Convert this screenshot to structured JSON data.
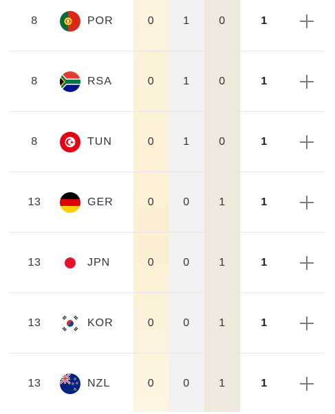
{
  "rows": [
    {
      "rank": "8",
      "code": "POR",
      "flag_icon": "portugal-flag-icon",
      "gold": "0",
      "silver": "1",
      "bronze": "0",
      "total": "1"
    },
    {
      "rank": "8",
      "code": "RSA",
      "flag_icon": "south-africa-flag-icon",
      "gold": "0",
      "silver": "1",
      "bronze": "0",
      "total": "1"
    },
    {
      "rank": "8",
      "code": "TUN",
      "flag_icon": "tunisia-flag-icon",
      "gold": "0",
      "silver": "1",
      "bronze": "0",
      "total": "1"
    },
    {
      "rank": "13",
      "code": "GER",
      "flag_icon": "germany-flag-icon",
      "gold": "0",
      "silver": "0",
      "bronze": "1",
      "total": "1"
    },
    {
      "rank": "13",
      "code": "JPN",
      "flag_icon": "japan-flag-icon",
      "gold": "0",
      "silver": "0",
      "bronze": "1",
      "total": "1"
    },
    {
      "rank": "13",
      "code": "KOR",
      "flag_icon": "south-korea-flag-icon",
      "gold": "0",
      "silver": "0",
      "bronze": "1",
      "total": "1"
    },
    {
      "rank": "13",
      "code": "NZL",
      "flag_icon": "new-zealand-flag-icon",
      "gold": "0",
      "silver": "0",
      "bronze": "1",
      "total": "1"
    }
  ],
  "colors": {
    "gold_column": "#fbf0d3",
    "silver_column": "#f2f2f3",
    "bronze_column": "#eee9dc",
    "divider": "#e6e6ea"
  }
}
